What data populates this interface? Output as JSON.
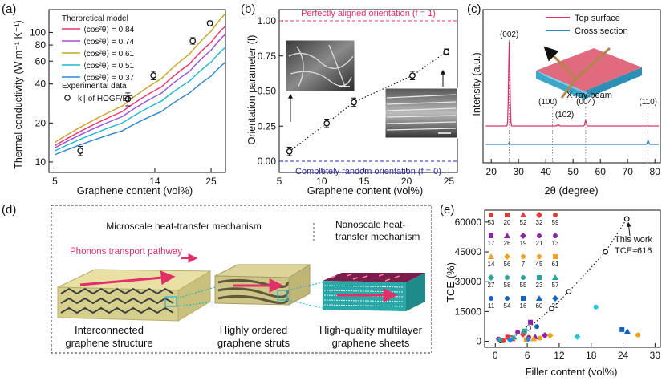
{
  "chart_data": [
    {
      "panel": "(a)",
      "type": "line",
      "xlabel": "Graphene content (vol%)",
      "ylabel": "Thermal conductivity (W m⁻¹ K⁻¹)",
      "xscale": "log",
      "yscale": "log",
      "xlim": [
        4.7,
        29
      ],
      "ylim": [
        8.3,
        150
      ],
      "xticks": [
        5,
        14,
        25
      ],
      "yticks": [
        10,
        20,
        40,
        60,
        80,
        100
      ],
      "model_title": "Theroretical model",
      "series": [
        {
          "name": "⟨cos²θ⟩ = 0.84",
          "color": "#e8356f",
          "x": [
            5,
            10,
            15,
            20,
            25,
            29
          ],
          "y": [
            13.4,
            24.5,
            38,
            57,
            84,
            112
          ]
        },
        {
          "name": "⟨cos²θ⟩ = 0.74",
          "color": "#9b4fd6",
          "x": [
            5,
            10,
            15,
            20,
            25,
            29
          ],
          "y": [
            12.9,
            22.4,
            34,
            50,
            73,
            97
          ]
        },
        {
          "name": "⟨cos²θ⟩ = 0.61",
          "color": "#c9a227",
          "x": [
            5,
            10,
            15,
            20,
            25,
            29
          ],
          "y": [
            14.2,
            27,
            44,
            68,
            102,
            140
          ]
        },
        {
          "name": "⟨cos²θ⟩ = 0.51",
          "color": "#1fb5c9",
          "x": [
            5,
            10,
            15,
            20,
            25,
            29
          ],
          "y": [
            12.2,
            20,
            29.5,
            42,
            59,
            77
          ]
        },
        {
          "name": "⟨cos²θ⟩ = 0.37",
          "color": "#2f86c7",
          "x": [
            5,
            10,
            15,
            20,
            25,
            29
          ],
          "y": [
            11.4,
            17.4,
            24.5,
            34,
            46,
            59
          ]
        }
      ],
      "experimental": {
        "title": "Experimental data",
        "label": "k∥ of HOGF/EP",
        "x": [
          6.5,
          10.6,
          13.8,
          20.7,
          24.7
        ],
        "y": [
          12.2,
          30.6,
          46.6,
          86.2,
          117.6
        ],
        "err": [
          1.0,
          3.5,
          3.5,
          5.0,
          5.0
        ]
      }
    },
    {
      "panel": "(b)",
      "type": "scatter",
      "xlabel": "Graphene content (vol%)",
      "ylabel": "Orientation parameter (f)",
      "xlim": [
        5,
        26
      ],
      "ylim": [
        -0.08,
        1.08
      ],
      "xticks": [
        5,
        10,
        15,
        20,
        25
      ],
      "yticks": [
        0.0,
        0.25,
        0.5,
        0.75,
        1.0
      ],
      "ytick_labels": [
        "0.00",
        "0.25",
        "0.50",
        "0.75",
        "1.00"
      ],
      "x": [
        6.2,
        10.6,
        13.8,
        20.7,
        24.7
      ],
      "y": [
        0.07,
        0.27,
        0.42,
        0.61,
        0.78
      ],
      "err": [
        0.03,
        0.03,
        0.03,
        0.03,
        0.02
      ],
      "line_top": {
        "y": 1,
        "label": "Perfectly aligned orientation (f = 1)"
      },
      "line_bottom": {
        "y": 0,
        "label": "Completely random orientation (f = 0)"
      }
    },
    {
      "panel": "(c)",
      "type": "line",
      "xlabel": "2θ (degree)",
      "ylabel": "Intensity (a.u.)",
      "xlim": [
        17,
        82
      ],
      "xticks": [
        20,
        30,
        40,
        50,
        60,
        70,
        80
      ],
      "series": [
        {
          "name": "Top surface",
          "color": "#e0306a"
        },
        {
          "name": "Cross section",
          "color": "#2e88c4"
        }
      ],
      "peaks": [
        {
          "x": 26.6,
          "label": "(002)"
        },
        {
          "x": 42.5,
          "label": "(100)"
        },
        {
          "x": 44.5,
          "label": "(102)"
        },
        {
          "x": 54.6,
          "label": "(004)"
        },
        {
          "x": 77.5,
          "label": "(110)"
        }
      ],
      "inset_label": "X-ray beam"
    },
    {
      "panel": "(e)",
      "type": "scatter",
      "xlabel": "Filler content (vol%)",
      "ylabel": "TCE (%)",
      "xlim": [
        -2,
        31
      ],
      "ylim": [
        -3000,
        66000
      ],
      "xticks": [
        0,
        6,
        12,
        18,
        24,
        30
      ],
      "yticks": [
        0,
        15000,
        30000,
        45000,
        60000
      ],
      "this_work": {
        "label": "This work",
        "sublabel": "TCE≈616",
        "x": [
          1,
          3,
          6.2,
          10.6,
          13.8,
          20.7,
          24.7
        ],
        "y": [
          400,
          1600,
          6700,
          16500,
          25000,
          45000,
          61600
        ]
      },
      "literature": [
        {
          "ref": "53",
          "x": 1.5,
          "y": 300,
          "color": "#e53935"
        },
        {
          "ref": "20",
          "x": 2.3,
          "y": 2100,
          "color": "#e53935"
        },
        {
          "ref": "52",
          "x": 3.2,
          "y": 1300,
          "color": "#e53935"
        },
        {
          "ref": "32",
          "x": 5.2,
          "y": 3500,
          "color": "#e53935"
        },
        {
          "ref": "59",
          "x": 6.3,
          "y": 2000,
          "color": "#c2185b"
        },
        {
          "ref": "17",
          "x": 4.2,
          "y": 4600,
          "color": "#8e24aa"
        },
        {
          "ref": "26",
          "x": 6.6,
          "y": 9600,
          "color": "#8e24aa"
        },
        {
          "ref": "19",
          "x": 7.5,
          "y": 2200,
          "color": "#8e24aa"
        },
        {
          "ref": "21",
          "x": 9.3,
          "y": 3000,
          "color": "#8e24aa"
        },
        {
          "ref": "13",
          "x": 0.6,
          "y": 1200,
          "color": "#8e24aa"
        },
        {
          "ref": "14",
          "x": 8.4,
          "y": 1600,
          "color": "#f4a020"
        },
        {
          "ref": "56",
          "x": 5.8,
          "y": 800,
          "color": "#f4a020"
        },
        {
          "ref": "7",
          "x": 7.2,
          "y": 1300,
          "color": "#f4a020"
        },
        {
          "ref": "45",
          "x": 10.3,
          "y": 2900,
          "color": "#f4a020"
        },
        {
          "ref": "61",
          "x": 26.8,
          "y": 3200,
          "color": "#f4a020"
        },
        {
          "ref": "27",
          "x": 0.9,
          "y": 800,
          "color": "#26a69a"
        },
        {
          "ref": "58",
          "x": 5.5,
          "y": 5200,
          "color": "#26a69a"
        },
        {
          "ref": "55",
          "x": 3.5,
          "y": 2100,
          "color": "#26a69a"
        },
        {
          "ref": "23",
          "x": 15.4,
          "y": 2300,
          "color": "#26c6da"
        },
        {
          "ref": "57",
          "x": 18.9,
          "y": 17300,
          "color": "#26c6da"
        },
        {
          "ref": "11",
          "x": 7.8,
          "y": 7400,
          "color": "#1565c0"
        },
        {
          "ref": "54",
          "x": 23.8,
          "y": 5900,
          "color": "#1565c0"
        },
        {
          "ref": "16",
          "x": 24.8,
          "y": 5000,
          "color": "#1565c0"
        },
        {
          "ref": "60",
          "x": 2.8,
          "y": 700,
          "color": "#1e88e5"
        },
        {
          "ref": "22",
          "x": 6.2,
          "y": 1100,
          "color": "#1e88e5"
        }
      ],
      "legend_rows": [
        [
          "53",
          "20",
          "52",
          "32",
          "59"
        ],
        [
          "17",
          "26",
          "19",
          "21",
          "13"
        ],
        [
          "14",
          "56",
          "7",
          "45",
          "61"
        ],
        [
          "27",
          "58",
          "55",
          "23",
          "57"
        ],
        [
          "11",
          "54",
          "16",
          "60",
          "22"
        ]
      ],
      "legend_colors": [
        "#e53935",
        "#8e24aa",
        "#f4a020",
        "#26a69a",
        "#1565c0"
      ]
    }
  ],
  "panel_d": {
    "label": "(d)",
    "micro_title": "Microscale heat-transfer mechanism",
    "nano_title": "Nanoscale heat-transfer mechanism",
    "nano_title_line1": "Nanoscale heat-",
    "nano_title_line2": "transfer mechanism",
    "pathway_label": "Phonons transport pathway",
    "captions": [
      {
        "line1": "Interconnected",
        "line2": "graphene structure"
      },
      {
        "line1": "Highly ordered",
        "line2": "graphene struts"
      },
      {
        "line1": "High-quality multilayer",
        "line2": "graphene sheets"
      }
    ]
  },
  "colors": {
    "pink": "#e0306a",
    "blue": "#2a2aa8",
    "accent": "#e8356f"
  }
}
